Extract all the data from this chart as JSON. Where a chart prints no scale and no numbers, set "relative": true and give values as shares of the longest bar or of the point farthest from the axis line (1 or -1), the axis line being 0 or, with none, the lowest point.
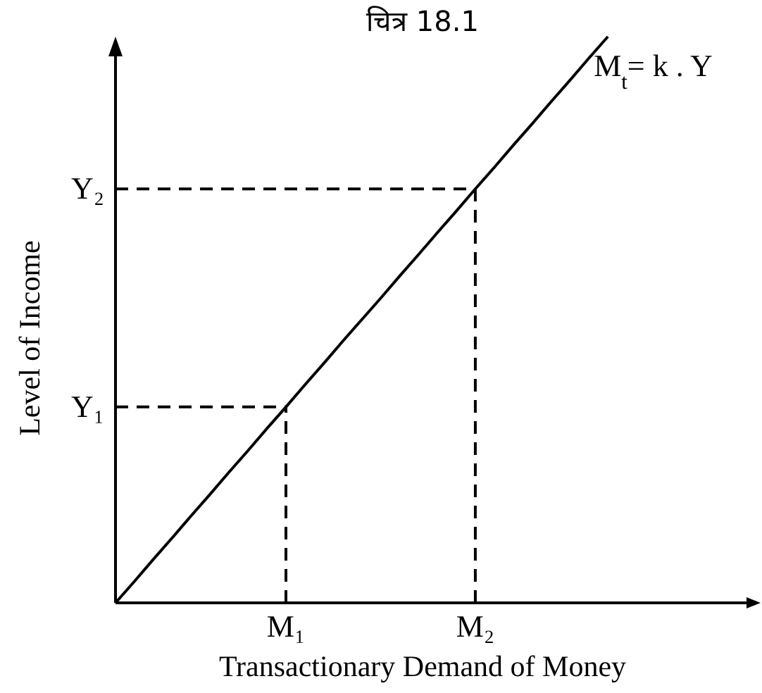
{
  "chart_data": {
    "type": "line",
    "relative": true,
    "title": "चित्र 18.1",
    "xlabel": "Transactionary Demand of Money",
    "ylabel": "Level of Income",
    "categories": [
      null,
      null,
      null,
      null,
      null,
      null,
      null,
      null,
      null,
      "M₁",
      null,
      null,
      null,
      null,
      null,
      null,
      null,
      null,
      null,
      "M₂",
      null,
      null,
      null,
      null,
      null,
      null,
      null
    ],
    "series": [
      {
        "name": "M$_{t}$= k . Y",
        "color": "#000000",
        "line_style": "solid",
        "values": [
          0,
          0.038,
          0.077,
          0.115,
          0.154,
          0.192,
          0.231,
          0.269,
          0.308,
          0.346,
          0.385,
          0.423,
          0.462,
          0.5,
          0.538,
          0.577,
          0.615,
          0.654,
          0.692,
          0.731,
          0.769,
          0.808,
          0.846,
          0.885,
          0.923,
          0.962,
          1
        ]
      }
    ],
    "ref_lines": [
      {
        "axis": "x",
        "value": "M₁",
        "line_style": "dashed",
        "color": "#000000"
      },
      {
        "axis": "x",
        "value": "M₂",
        "line_style": "dashed",
        "color": "#000000"
      },
      {
        "axis": "y",
        "value": 0.346,
        "label": "Y₁",
        "line_style": "dashed",
        "color": "#000000"
      },
      {
        "axis": "y",
        "value": 0.731,
        "label": "Y₂",
        "line_style": "dashed",
        "color": "#000000"
      }
    ]
  }
}
